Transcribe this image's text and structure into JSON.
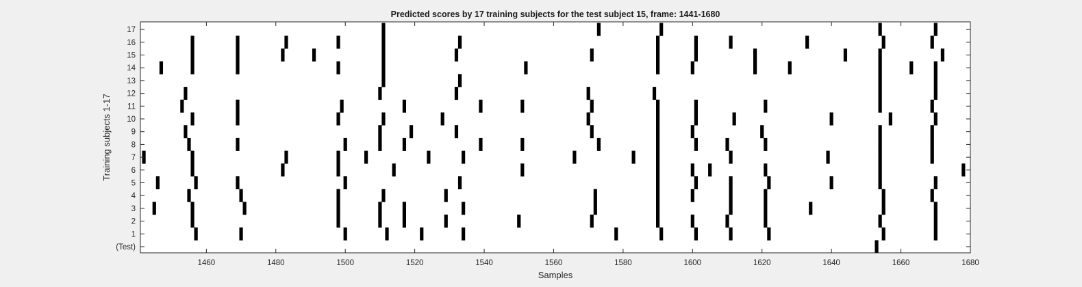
{
  "chart_data": {
    "type": "event-raster",
    "title": "Predicted scores by 17 training subjects for the test subject 15, frame: 1441-1680",
    "xlabel": "Samples",
    "ylabel": "Training subjects 1-17",
    "xlim": [
      1441,
      1680
    ],
    "x_ticks": [
      1460,
      1480,
      1500,
      1520,
      1540,
      1560,
      1580,
      1600,
      1620,
      1640,
      1660,
      1680
    ],
    "y_tick_labels": [
      "(Test)",
      "1",
      "2",
      "3",
      "4",
      "5",
      "6",
      "7",
      "8",
      "9",
      "10",
      "11",
      "12",
      "13",
      "14",
      "15",
      "16",
      "17"
    ],
    "grid": false,
    "mark_color": "#000000",
    "series": [
      {
        "name": "(Test)",
        "x": [
          1653
        ]
      },
      {
        "name": "1",
        "x": [
          1457,
          1470,
          1500,
          1512,
          1522,
          1534,
          1578,
          1591,
          1601,
          1611,
          1622,
          1655,
          1670
        ]
      },
      {
        "name": "2",
        "x": [
          1456,
          1498,
          1510,
          1517,
          1529,
          1550,
          1571,
          1590,
          1600,
          1610,
          1621,
          1654,
          1670
        ]
      },
      {
        "name": "3",
        "x": [
          1445,
          1456,
          1471,
          1498,
          1510,
          1517,
          1534,
          1572,
          1590,
          1611,
          1621,
          1634,
          1655,
          1670
        ]
      },
      {
        "name": "4",
        "x": [
          1455,
          1470,
          1498,
          1511,
          1529,
          1572,
          1590,
          1600,
          1611,
          1621,
          1655,
          1669
        ]
      },
      {
        "name": "5",
        "x": [
          1446,
          1457,
          1469,
          1500,
          1533,
          1590,
          1601,
          1611,
          1622,
          1640,
          1654,
          1670
        ]
      },
      {
        "name": "6",
        "x": [
          1456,
          1482,
          1498,
          1514,
          1551,
          1590,
          1600,
          1605,
          1621,
          1654,
          1678
        ]
      },
      {
        "name": "7",
        "x": [
          1442,
          1456,
          1483,
          1498,
          1506,
          1524,
          1534,
          1566,
          1583,
          1590,
          1611,
          1639,
          1654,
          1669
        ]
      },
      {
        "name": "8",
        "x": [
          1455,
          1469,
          1500,
          1510,
          1517,
          1539,
          1551,
          1573,
          1590,
          1601,
          1610,
          1621,
          1654,
          1669
        ]
      },
      {
        "name": "9",
        "x": [
          1454,
          1510,
          1519,
          1532,
          1571,
          1590,
          1600,
          1620,
          1654,
          1669
        ]
      },
      {
        "name": "10",
        "x": [
          1456,
          1469,
          1498,
          1511,
          1528,
          1570,
          1590,
          1601,
          1612,
          1640,
          1657,
          1670
        ]
      },
      {
        "name": "11",
        "x": [
          1453,
          1469,
          1499,
          1517,
          1539,
          1551,
          1571,
          1590,
          1601,
          1621,
          1654,
          1669
        ]
      },
      {
        "name": "12",
        "x": [
          1454,
          1510,
          1532,
          1570,
          1589,
          1654,
          1670
        ]
      },
      {
        "name": "13",
        "x": [
          1511,
          1533,
          1654,
          1670
        ]
      },
      {
        "name": "14",
        "x": [
          1447,
          1456,
          1469,
          1498,
          1511,
          1552,
          1590,
          1600,
          1618,
          1628,
          1654,
          1663,
          1670
        ]
      },
      {
        "name": "15",
        "x": [
          1456,
          1469,
          1482,
          1491,
          1511,
          1532,
          1571,
          1590,
          1601,
          1618,
          1644,
          1654,
          1672
        ]
      },
      {
        "name": "16",
        "x": [
          1456,
          1469,
          1483,
          1498,
          1511,
          1533,
          1590,
          1601,
          1611,
          1633,
          1655,
          1669
        ]
      },
      {
        "name": "17",
        "x": [
          1511,
          1573,
          1591,
          1654,
          1670
        ]
      }
    ]
  }
}
